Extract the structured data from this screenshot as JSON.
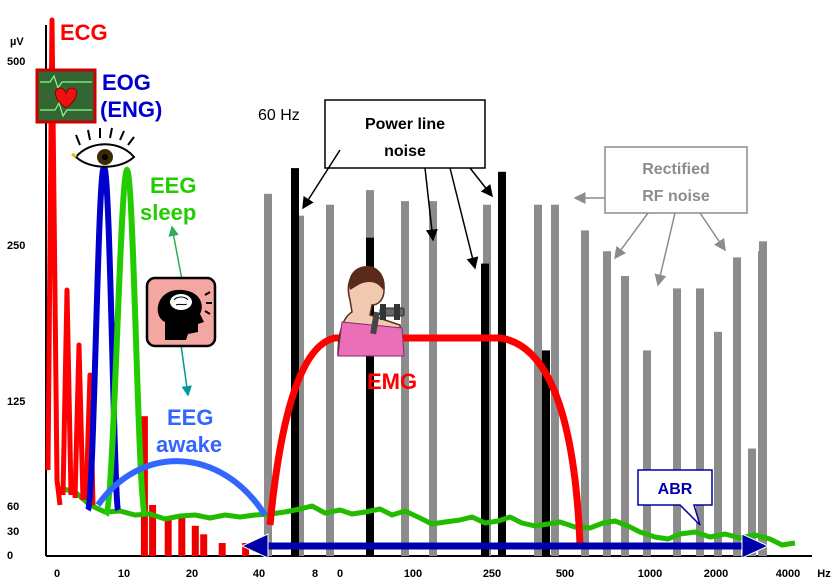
{
  "chart_data": {
    "type": "line",
    "title": "",
    "xlabel": "",
    "ylabel": "",
    "y_unit": "µV",
    "x_unit": "Hz",
    "y_ticks": [
      "500",
      "250",
      "125",
      "60",
      "30",
      "0"
    ],
    "x_ticks": [
      "0",
      "10",
      "20",
      "40",
      "8",
      "0",
      "100",
      "250",
      "500",
      "1000",
      "2000",
      "4000"
    ],
    "grid": false,
    "labels": {
      "ecg": "ECG",
      "eog1": "EOG",
      "eog2": "(ENG)",
      "eeg_sleep1": "EEG",
      "eeg_sleep2": "sleep",
      "eeg_awake1": "EEG",
      "eeg_awake2": "awake",
      "emg": "EMG",
      "hz60": "60 Hz",
      "powerline1": "Power line",
      "powerline2": "noise",
      "rf1": "Rectified",
      "rf2": "RF noise",
      "abr": "ABR"
    },
    "colors": {
      "ecg": "#ff0000",
      "eog": "#0000cc",
      "eeg_sleep": "#22cc00",
      "eeg_awake": "#3366ff",
      "emg": "#ff0000",
      "power_line": "#000000",
      "rf_noise": "#8c8c8c",
      "noise_floor": "#22bb00",
      "abr": "#0000aa"
    },
    "series": [
      {
        "name": "ECG",
        "type": "spikes",
        "values": [
          [
            1.6,
            550
          ],
          [
            4.2,
            220
          ],
          [
            6.6,
            165
          ],
          [
            8.3,
            140
          ]
        ]
      },
      {
        "name": "EOG",
        "type": "peak",
        "center": 8.6,
        "height": 360
      },
      {
        "name": "EEG sleep",
        "type": "peak",
        "center": 10.5,
        "height": 345
      },
      {
        "name": "EEG awake",
        "type": "band",
        "from": 6.5,
        "to": 41,
        "height": 80
      },
      {
        "name": "EMG",
        "type": "band",
        "from": 43,
        "to": 580,
        "height": 185
      },
      {
        "name": "Power line noise",
        "type": "bars",
        "values": [
          [
            62,
            355
          ],
          [
            120,
            260
          ],
          [
            240,
            235
          ],
          [
            330,
            350
          ],
          [
            510,
            165
          ]
        ]
      },
      {
        "name": "Rectified RF noise",
        "type": "bars",
        "values": [
          [
            52,
            320
          ],
          [
            74,
            290
          ],
          [
            92,
            305
          ],
          [
            120,
            325
          ],
          [
            165,
            310
          ],
          [
            205,
            310
          ],
          [
            285,
            305
          ],
          [
            470,
            305
          ],
          [
            520,
            305
          ],
          [
            650,
            270
          ],
          [
            720,
            245
          ],
          [
            790,
            225
          ],
          [
            900,
            165
          ],
          [
            1050,
            215
          ],
          [
            1250,
            215
          ],
          [
            1450,
            180
          ],
          [
            1650,
            160
          ],
          [
            1850,
            240
          ],
          [
            2300,
            245
          ],
          [
            2400,
            95
          ],
          [
            2700,
            255
          ]
        ]
      },
      {
        "name": "ECG harmonics",
        "type": "bars",
        "values": [
          [
            13.0,
            115
          ],
          [
            14.2,
            60
          ],
          [
            16.5,
            45
          ],
          [
            18.5,
            45
          ],
          [
            21.0,
            35
          ],
          [
            23.5,
            25
          ],
          [
            29.0,
            15
          ],
          [
            36.0,
            15
          ]
        ]
      },
      {
        "name": "ABR",
        "type": "band",
        "from": 40,
        "to": 3000,
        "height": 0
      }
    ]
  }
}
